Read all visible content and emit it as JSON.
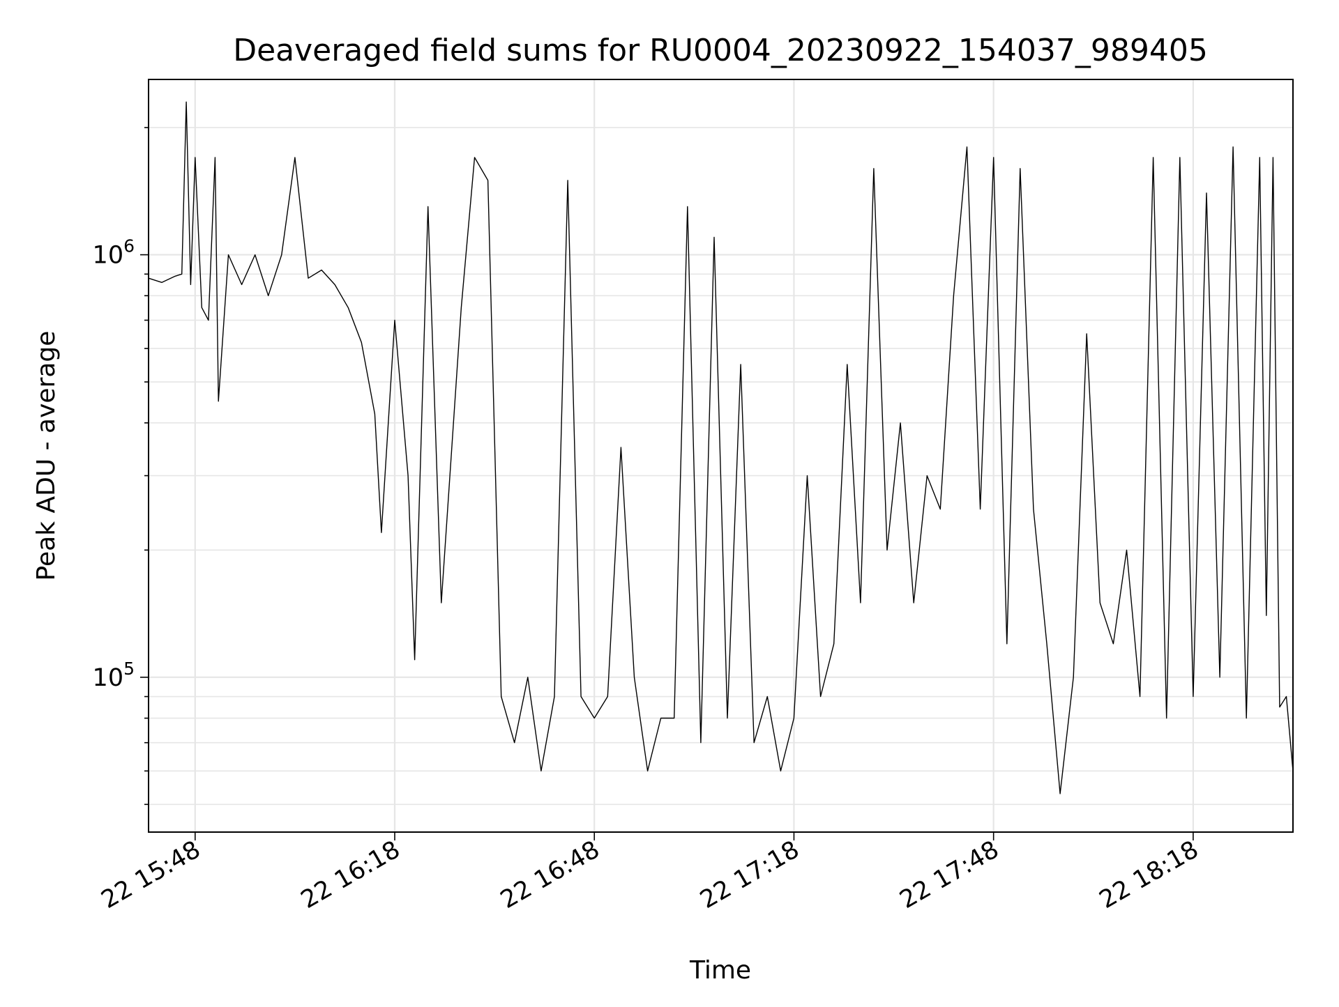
{
  "chart_data": {
    "type": "line",
    "title": "Deaveraged field sums for RU0004_20230922_154037_989405",
    "xlabel": "Time",
    "ylabel": "Peak ADU - average",
    "yscale": "log",
    "ylim": [
      43000,
      2600000
    ],
    "xlim": [
      "2023-09-22 15:41",
      "2023-09-22 18:33"
    ],
    "grid": true,
    "x_ticks": [
      "22 15:48",
      "22 16:18",
      "22 16:48",
      "22 17:18",
      "22 17:48",
      "22 18:18"
    ],
    "y_ticks": [
      {
        "base": "10",
        "exp": "5",
        "value": 100000
      },
      {
        "base": "10",
        "exp": "6",
        "value": 1000000
      }
    ],
    "series": [
      {
        "color": "#000000",
        "points": [
          [
            "2023-09-22 15:41",
            880000
          ],
          [
            "2023-09-22 15:43",
            860000
          ],
          [
            "2023-09-22 15:45",
            890000
          ],
          [
            "2023-09-22 15:46",
            900000
          ],
          [
            "2023-09-22 15:46:40",
            2300000
          ],
          [
            "2023-09-22 15:47:20",
            850000
          ],
          [
            "2023-09-22 15:48",
            1700000
          ],
          [
            "2023-09-22 15:49",
            750000
          ],
          [
            "2023-09-22 15:50",
            700000
          ],
          [
            "2023-09-22 15:51",
            1700000
          ],
          [
            "2023-09-22 15:51:30",
            450000
          ],
          [
            "2023-09-22 15:53",
            1000000
          ],
          [
            "2023-09-22 15:55",
            850000
          ],
          [
            "2023-09-22 15:57",
            1000000
          ],
          [
            "2023-09-22 15:59",
            800000
          ],
          [
            "2023-09-22 16:01",
            1000000
          ],
          [
            "2023-09-22 16:03",
            1700000
          ],
          [
            "2023-09-22 16:05",
            880000
          ],
          [
            "2023-09-22 16:07",
            920000
          ],
          [
            "2023-09-22 16:09",
            850000
          ],
          [
            "2023-09-22 16:11",
            750000
          ],
          [
            "2023-09-22 16:13",
            620000
          ],
          [
            "2023-09-22 16:15",
            420000
          ],
          [
            "2023-09-22 16:16",
            220000
          ],
          [
            "2023-09-22 16:18",
            700000
          ],
          [
            "2023-09-22 16:20",
            300000
          ],
          [
            "2023-09-22 16:21",
            110000
          ],
          [
            "2023-09-22 16:23",
            1300000
          ],
          [
            "2023-09-22 16:25",
            150000
          ],
          [
            "2023-09-22 16:28",
            750000
          ],
          [
            "2023-09-22 16:30",
            1700000
          ],
          [
            "2023-09-22 16:32",
            1500000
          ],
          [
            "2023-09-22 16:34",
            90000
          ],
          [
            "2023-09-22 16:36",
            70000
          ],
          [
            "2023-09-22 16:38",
            100000
          ],
          [
            "2023-09-22 16:40",
            60000
          ],
          [
            "2023-09-22 16:42",
            90000
          ],
          [
            "2023-09-22 16:44",
            1500000
          ],
          [
            "2023-09-22 16:46",
            90000
          ],
          [
            "2023-09-22 16:48",
            80000
          ],
          [
            "2023-09-22 16:50",
            90000
          ],
          [
            "2023-09-22 16:52",
            350000
          ],
          [
            "2023-09-22 16:54",
            100000
          ],
          [
            "2023-09-22 16:56",
            60000
          ],
          [
            "2023-09-22 16:58",
            80000
          ],
          [
            "2023-09-22 17:00",
            80000
          ],
          [
            "2023-09-22 17:02",
            1300000
          ],
          [
            "2023-09-22 17:04",
            70000
          ],
          [
            "2023-09-22 17:06",
            1100000
          ],
          [
            "2023-09-22 17:08",
            80000
          ],
          [
            "2023-09-22 17:10",
            550000
          ],
          [
            "2023-09-22 17:12",
            70000
          ],
          [
            "2023-09-22 17:14",
            90000
          ],
          [
            "2023-09-22 17:16",
            60000
          ],
          [
            "2023-09-22 17:18",
            80000
          ],
          [
            "2023-09-22 17:20",
            300000
          ],
          [
            "2023-09-22 17:22",
            90000
          ],
          [
            "2023-09-22 17:24",
            120000
          ],
          [
            "2023-09-22 17:26",
            550000
          ],
          [
            "2023-09-22 17:28",
            150000
          ],
          [
            "2023-09-22 17:30",
            1600000
          ],
          [
            "2023-09-22 17:32",
            200000
          ],
          [
            "2023-09-22 17:34",
            400000
          ],
          [
            "2023-09-22 17:36",
            150000
          ],
          [
            "2023-09-22 17:38",
            300000
          ],
          [
            "2023-09-22 17:40",
            250000
          ],
          [
            "2023-09-22 17:42",
            800000
          ],
          [
            "2023-09-22 17:44",
            1800000
          ],
          [
            "2023-09-22 17:46",
            250000
          ],
          [
            "2023-09-22 17:48",
            1700000
          ],
          [
            "2023-09-22 17:50",
            120000
          ],
          [
            "2023-09-22 17:52",
            1600000
          ],
          [
            "2023-09-22 17:54",
            250000
          ],
          [
            "2023-09-22 17:56",
            120000
          ],
          [
            "2023-09-22 17:58",
            53000
          ],
          [
            "2023-09-22 18:00",
            100000
          ],
          [
            "2023-09-22 18:02",
            650000
          ],
          [
            "2023-09-22 18:04",
            150000
          ],
          [
            "2023-09-22 18:06",
            120000
          ],
          [
            "2023-09-22 18:08",
            200000
          ],
          [
            "2023-09-22 18:10",
            90000
          ],
          [
            "2023-09-22 18:12",
            1700000
          ],
          [
            "2023-09-22 18:14",
            80000
          ],
          [
            "2023-09-22 18:16",
            1700000
          ],
          [
            "2023-09-22 18:18",
            90000
          ],
          [
            "2023-09-22 18:20",
            1400000
          ],
          [
            "2023-09-22 18:22",
            100000
          ],
          [
            "2023-09-22 18:24",
            1800000
          ],
          [
            "2023-09-22 18:26",
            80000
          ],
          [
            "2023-09-22 18:28",
            1700000
          ],
          [
            "2023-09-22 18:29",
            140000
          ],
          [
            "2023-09-22 18:30",
            1700000
          ],
          [
            "2023-09-22 18:31",
            85000
          ],
          [
            "2023-09-22 18:32",
            90000
          ],
          [
            "2023-09-22 18:33",
            60000
          ]
        ]
      }
    ]
  }
}
